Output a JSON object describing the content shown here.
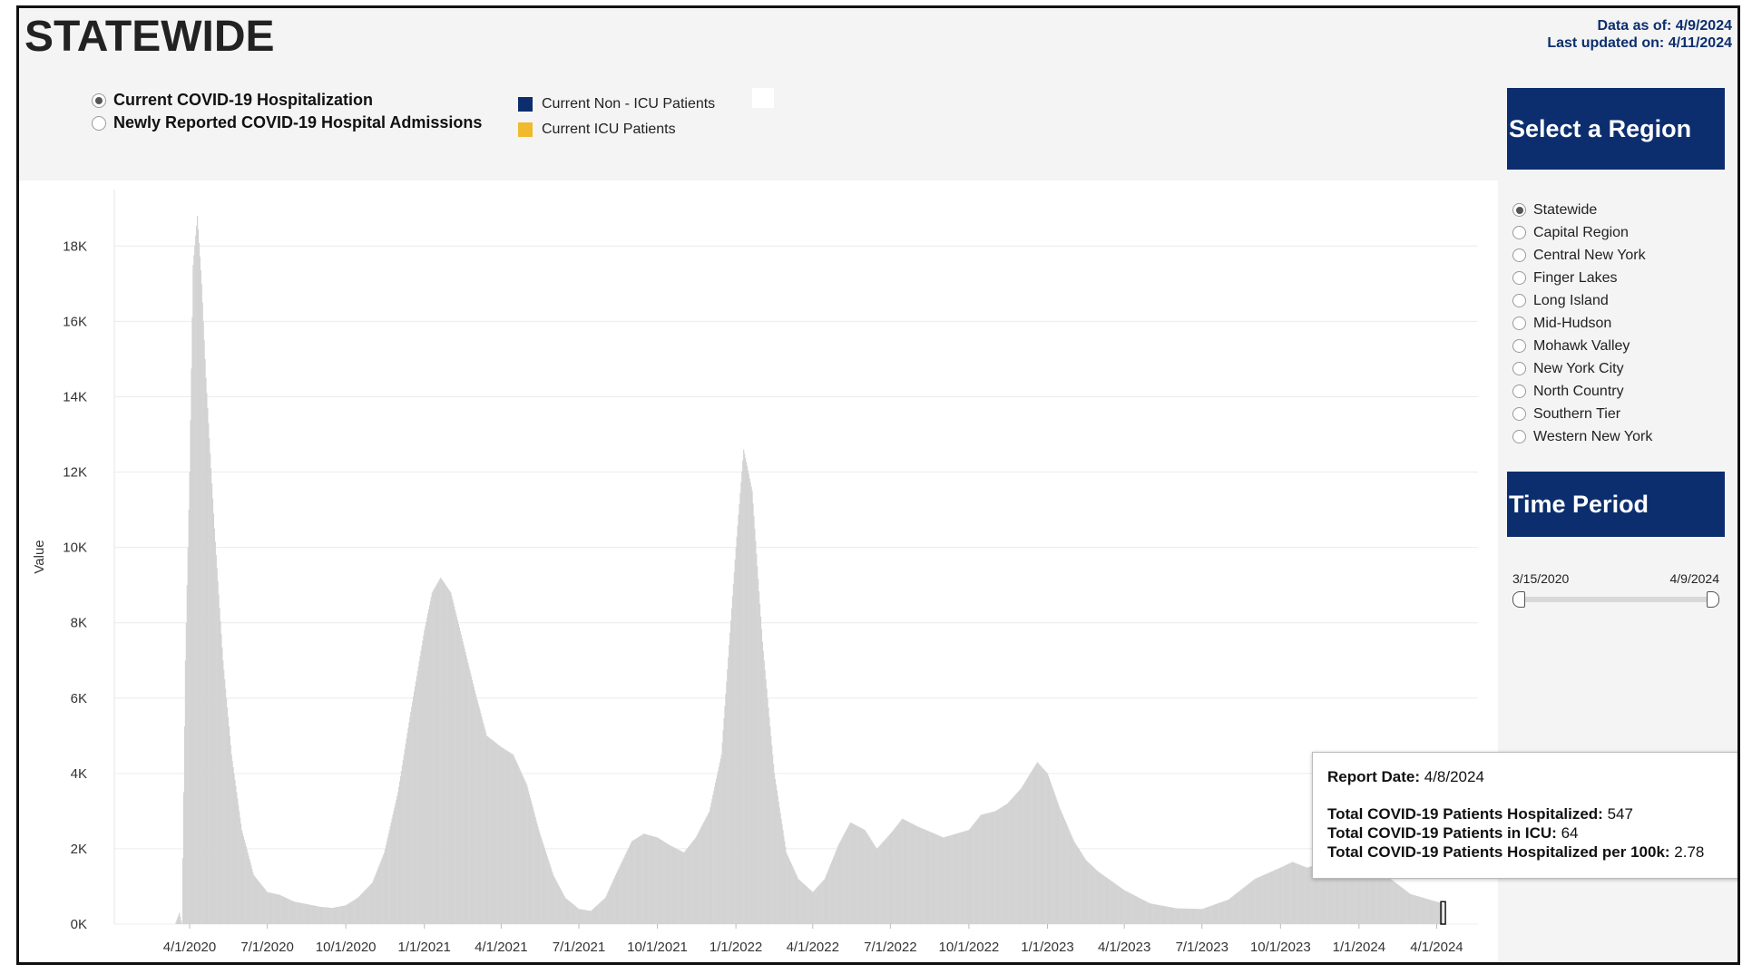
{
  "header": {
    "title": "STATEWIDE",
    "data_as_of_label": "Data as of:",
    "data_as_of": "4/9/2024",
    "last_updated_label": "Last updated on:",
    "last_updated": "4/11/2024"
  },
  "metric_options": [
    {
      "label": "Current COVID-19 Hospitalization",
      "selected": true
    },
    {
      "label": "Newly Reported COVID-19 Hospital Admissions",
      "selected": false
    }
  ],
  "legend": [
    {
      "label": "Current Non - ICU Patients",
      "color": "#0c2e6e"
    },
    {
      "label": "Current ICU Patients",
      "color": "#f0b92e"
    }
  ],
  "sidebar": {
    "region_title": "Select a Region",
    "regions": [
      {
        "label": "Statewide",
        "selected": true
      },
      {
        "label": "Capital Region",
        "selected": false
      },
      {
        "label": "Central New York",
        "selected": false
      },
      {
        "label": "Finger Lakes",
        "selected": false
      },
      {
        "label": "Long Island",
        "selected": false
      },
      {
        "label": "Mid-Hudson",
        "selected": false
      },
      {
        "label": "Mohawk Valley",
        "selected": false
      },
      {
        "label": "New York City",
        "selected": false
      },
      {
        "label": "North Country",
        "selected": false
      },
      {
        "label": "Southern Tier",
        "selected": false
      },
      {
        "label": "Western New York",
        "selected": false
      }
    ],
    "time_title": "Time Period",
    "time_start": "3/15/2020",
    "time_end": "4/9/2024"
  },
  "tooltip": {
    "report_date_label": "Report Date:",
    "report_date": "4/8/2024",
    "hospitalized_label": "Total COVID-19 Patients Hospitalized:",
    "hospitalized": "547",
    "icu_label": "Total COVID-19 Patients in ICU:",
    "icu": "64",
    "per100k_label": "Total COVID-19 Patients Hospitalized per 100k:",
    "per100k": "2.78"
  },
  "chart_data": {
    "type": "bar",
    "ylabel": "Value",
    "ylim": [
      0,
      19500
    ],
    "y_ticks": [
      {
        "value": 0,
        "label": "0K"
      },
      {
        "value": 2000,
        "label": "2K"
      },
      {
        "value": 4000,
        "label": "4K"
      },
      {
        "value": 6000,
        "label": "6K"
      },
      {
        "value": 8000,
        "label": "8K"
      },
      {
        "value": 10000,
        "label": "10K"
      },
      {
        "value": 12000,
        "label": "12K"
      },
      {
        "value": 14000,
        "label": "14K"
      },
      {
        "value": 16000,
        "label": "16K"
      },
      {
        "value": 18000,
        "label": "18K"
      }
    ],
    "x_ticks": [
      "4/1/2020",
      "7/1/2020",
      "10/1/2020",
      "1/1/2021",
      "4/1/2021",
      "7/1/2021",
      "10/1/2021",
      "1/1/2022",
      "4/1/2022",
      "7/1/2022",
      "10/1/2022",
      "1/1/2023",
      "4/1/2023",
      "7/1/2023",
      "10/1/2023",
      "1/1/2024",
      "4/1/2024"
    ],
    "x_range": [
      "3/15/2020",
      "4/9/2024"
    ],
    "bar_color": "#d3d3d3",
    "series": [
      {
        "name": "Total COVID-19 Patients Hospitalized",
        "points": [
          [
            "3/15/2020",
            0
          ],
          [
            "3/20/2020",
            300
          ],
          [
            "3/23/2020",
            0
          ],
          [
            "3/27/2020",
            7000
          ],
          [
            "4/1/2020",
            12000
          ],
          [
            "4/5/2020",
            17500
          ],
          [
            "4/10/2020",
            18800
          ],
          [
            "4/15/2020",
            17000
          ],
          [
            "4/20/2020",
            14500
          ],
          [
            "4/30/2020",
            10500
          ],
          [
            "5/10/2020",
            7000
          ],
          [
            "5/20/2020",
            4500
          ],
          [
            "6/1/2020",
            2500
          ],
          [
            "6/15/2020",
            1300
          ],
          [
            "7/1/2020",
            850
          ],
          [
            "7/15/2020",
            780
          ],
          [
            "8/1/2020",
            600
          ],
          [
            "9/1/2020",
            460
          ],
          [
            "9/15/2020",
            430
          ],
          [
            "10/1/2020",
            500
          ],
          [
            "10/15/2020",
            700
          ],
          [
            "11/1/2020",
            1100
          ],
          [
            "11/15/2020",
            1900
          ],
          [
            "12/1/2020",
            3500
          ],
          [
            "12/15/2020",
            5500
          ],
          [
            "1/1/2021",
            7800
          ],
          [
            "1/10/2021",
            8800
          ],
          [
            "1/20/2021",
            9200
          ],
          [
            "2/1/2021",
            8800
          ],
          [
            "2/15/2021",
            7500
          ],
          [
            "3/1/2021",
            6200
          ],
          [
            "3/15/2021",
            5000
          ],
          [
            "4/1/2021",
            4700
          ],
          [
            "4/15/2021",
            4500
          ],
          [
            "5/1/2021",
            3700
          ],
          [
            "5/15/2021",
            2500
          ],
          [
            "6/1/2021",
            1300
          ],
          [
            "6/15/2021",
            700
          ],
          [
            "7/1/2021",
            400
          ],
          [
            "7/15/2021",
            350
          ],
          [
            "8/1/2021",
            700
          ],
          [
            "8/15/2021",
            1400
          ],
          [
            "9/1/2021",
            2200
          ],
          [
            "9/15/2021",
            2400
          ],
          [
            "10/1/2021",
            2300
          ],
          [
            "10/15/2021",
            2100
          ],
          [
            "11/1/2021",
            1900
          ],
          [
            "11/15/2021",
            2300
          ],
          [
            "12/1/2021",
            3000
          ],
          [
            "12/15/2021",
            4500
          ],
          [
            "1/1/2022",
            10000
          ],
          [
            "1/10/2022",
            12600
          ],
          [
            "1/20/2022",
            11500
          ],
          [
            "2/1/2022",
            7500
          ],
          [
            "2/15/2022",
            4000
          ],
          [
            "3/1/2022",
            1900
          ],
          [
            "3/15/2022",
            1200
          ],
          [
            "4/1/2022",
            850
          ],
          [
            "4/15/2022",
            1200
          ],
          [
            "5/1/2022",
            2100
          ],
          [
            "5/15/2022",
            2700
          ],
          [
            "6/1/2022",
            2500
          ],
          [
            "6/15/2022",
            2000
          ],
          [
            "7/1/2022",
            2400
          ],
          [
            "7/15/2022",
            2800
          ],
          [
            "8/1/2022",
            2600
          ],
          [
            "9/1/2022",
            2300
          ],
          [
            "10/1/2022",
            2500
          ],
          [
            "10/15/2022",
            2900
          ],
          [
            "11/1/2022",
            3000
          ],
          [
            "11/15/2022",
            3200
          ],
          [
            "12/1/2022",
            3600
          ],
          [
            "12/20/2022",
            4300
          ],
          [
            "1/1/2023",
            4000
          ],
          [
            "1/15/2023",
            3100
          ],
          [
            "2/1/2023",
            2200
          ],
          [
            "2/15/2023",
            1700
          ],
          [
            "3/1/2023",
            1400
          ],
          [
            "4/1/2023",
            900
          ],
          [
            "5/1/2023",
            550
          ],
          [
            "6/1/2023",
            420
          ],
          [
            "7/1/2023",
            400
          ],
          [
            "8/1/2023",
            650
          ],
          [
            "9/1/2023",
            1200
          ],
          [
            "10/1/2023",
            1500
          ],
          [
            "10/15/2023",
            1650
          ],
          [
            "11/1/2023",
            1500
          ],
          [
            "12/1/2023",
            1700
          ],
          [
            "1/1/2024",
            1850
          ],
          [
            "2/1/2024",
            1300
          ],
          [
            "3/1/2024",
            800
          ],
          [
            "4/8/2024",
            547
          ]
        ]
      }
    ]
  }
}
